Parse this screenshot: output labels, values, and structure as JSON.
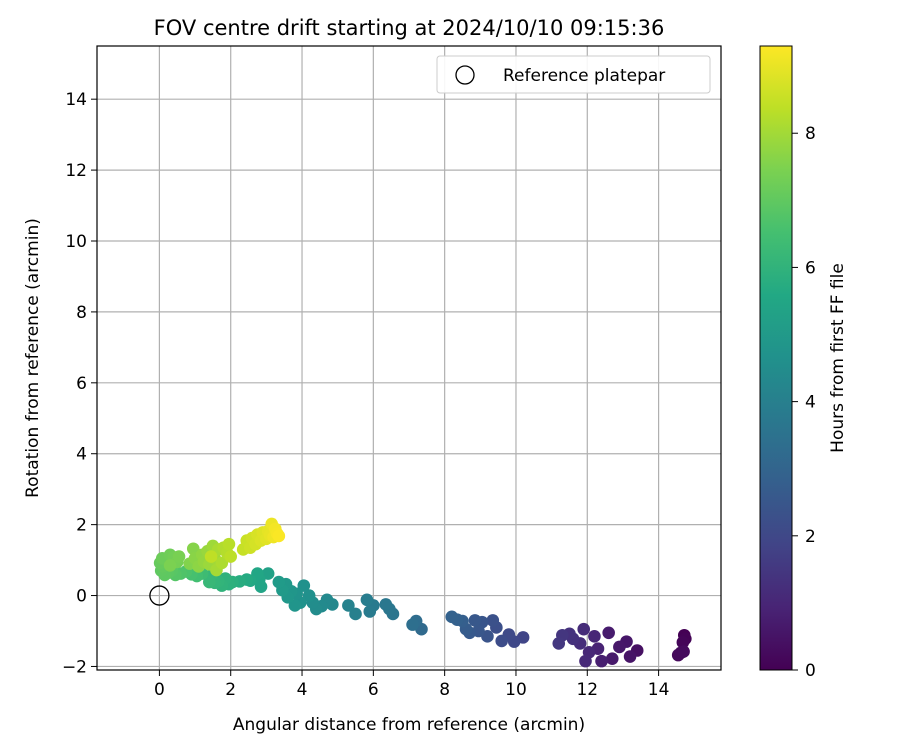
{
  "chart_data": {
    "type": "scatter",
    "title": "FOV centre drift starting at 2024/10/10 09:15:36",
    "xlabel": "Angular distance from reference (arcmin)",
    "ylabel": "Rotation from reference (arcmin)",
    "xlim": [
      -1.75,
      15.75
    ],
    "ylim": [
      -2.1,
      15.5
    ],
    "xticks": [
      0,
      2,
      4,
      6,
      8,
      10,
      12,
      14
    ],
    "yticks": [
      -2,
      0,
      2,
      4,
      6,
      8,
      10,
      12,
      14
    ],
    "grid": true,
    "legend": {
      "placement": "upper-right",
      "entries": [
        "Reference platepar"
      ]
    },
    "reference_point": {
      "x": 0,
      "y": 0,
      "label": "Reference platepar"
    },
    "colorbar": {
      "label": "Hours from first FF file",
      "colormap": "viridis",
      "range": [
        0,
        9.3
      ],
      "ticks": [
        0,
        2,
        4,
        6,
        8
      ]
    },
    "series": [
      {
        "points": [
          {
            "x": 14.72,
            "y": -1.12,
            "t": 0.0
          },
          {
            "x": 14.75,
            "y": -1.22,
            "t": 0.05
          },
          {
            "x": 14.68,
            "y": -1.32,
            "t": 0.1
          },
          {
            "x": 14.62,
            "y": -1.62,
            "t": 0.15
          },
          {
            "x": 14.55,
            "y": -1.68,
            "t": 0.2
          },
          {
            "x": 14.7,
            "y": -1.58,
            "t": 0.25
          },
          {
            "x": 13.4,
            "y": -1.55,
            "t": 0.4
          },
          {
            "x": 13.2,
            "y": -1.72,
            "t": 0.5
          },
          {
            "x": 13.1,
            "y": -1.3,
            "t": 0.55
          },
          {
            "x": 12.9,
            "y": -1.45,
            "t": 0.6
          },
          {
            "x": 12.7,
            "y": -1.78,
            "t": 0.65
          },
          {
            "x": 12.6,
            "y": -1.05,
            "t": 0.7
          },
          {
            "x": 12.4,
            "y": -1.85,
            "t": 0.8
          },
          {
            "x": 12.3,
            "y": -1.5,
            "t": 0.9
          },
          {
            "x": 12.2,
            "y": -1.15,
            "t": 1.0
          },
          {
            "x": 12.05,
            "y": -1.6,
            "t": 1.05
          },
          {
            "x": 11.95,
            "y": -1.85,
            "t": 1.1
          },
          {
            "x": 11.9,
            "y": -0.95,
            "t": 1.15
          },
          {
            "x": 11.8,
            "y": -1.35,
            "t": 1.2
          },
          {
            "x": 11.6,
            "y": -1.22,
            "t": 1.3
          },
          {
            "x": 11.5,
            "y": -1.08,
            "t": 1.35
          },
          {
            "x": 11.3,
            "y": -1.12,
            "t": 1.45
          },
          {
            "x": 11.2,
            "y": -1.35,
            "t": 1.5
          },
          {
            "x": 10.2,
            "y": -1.18,
            "t": 1.9
          },
          {
            "x": 9.95,
            "y": -1.3,
            "t": 2.0
          },
          {
            "x": 9.8,
            "y": -1.1,
            "t": 2.05
          },
          {
            "x": 9.6,
            "y": -1.28,
            "t": 2.15
          },
          {
            "x": 9.45,
            "y": -0.9,
            "t": 2.25
          },
          {
            "x": 9.35,
            "y": -0.7,
            "t": 2.3
          },
          {
            "x": 9.2,
            "y": -1.15,
            "t": 2.4
          },
          {
            "x": 9.05,
            "y": -0.75,
            "t": 2.45
          },
          {
            "x": 8.95,
            "y": -1.0,
            "t": 2.5
          },
          {
            "x": 8.85,
            "y": -0.7,
            "t": 2.55
          },
          {
            "x": 8.7,
            "y": -1.05,
            "t": 2.6
          },
          {
            "x": 8.6,
            "y": -0.95,
            "t": 2.7
          },
          {
            "x": 8.5,
            "y": -0.72,
            "t": 2.8
          },
          {
            "x": 8.35,
            "y": -0.68,
            "t": 2.85
          },
          {
            "x": 8.2,
            "y": -0.6,
            "t": 2.9
          },
          {
            "x": 7.35,
            "y": -0.95,
            "t": 3.2
          },
          {
            "x": 7.2,
            "y": -0.72,
            "t": 3.3
          },
          {
            "x": 7.1,
            "y": -0.82,
            "t": 3.4
          },
          {
            "x": 6.55,
            "y": -0.52,
            "t": 3.6
          },
          {
            "x": 6.45,
            "y": -0.38,
            "t": 3.65
          },
          {
            "x": 6.35,
            "y": -0.25,
            "t": 3.7
          },
          {
            "x": 6.0,
            "y": -0.28,
            "t": 3.8
          },
          {
            "x": 5.9,
            "y": -0.45,
            "t": 3.85
          },
          {
            "x": 5.82,
            "y": -0.12,
            "t": 3.9
          },
          {
            "x": 5.5,
            "y": -0.52,
            "t": 4.0
          },
          {
            "x": 5.3,
            "y": -0.28,
            "t": 4.1
          },
          {
            "x": 4.85,
            "y": -0.25,
            "t": 4.3
          },
          {
            "x": 4.7,
            "y": -0.12,
            "t": 4.35
          },
          {
            "x": 4.55,
            "y": -0.3,
            "t": 4.4
          },
          {
            "x": 4.4,
            "y": -0.38,
            "t": 4.45
          },
          {
            "x": 4.3,
            "y": -0.2,
            "t": 4.5
          },
          {
            "x": 4.2,
            "y": 0.0,
            "t": 4.6
          },
          {
            "x": 4.05,
            "y": 0.28,
            "t": 4.65
          },
          {
            "x": 3.95,
            "y": -0.2,
            "t": 4.7
          },
          {
            "x": 3.85,
            "y": 0.05,
            "t": 4.75
          },
          {
            "x": 3.8,
            "y": -0.28,
            "t": 4.8
          },
          {
            "x": 3.7,
            "y": 0.12,
            "t": 4.85
          },
          {
            "x": 3.6,
            "y": -0.05,
            "t": 4.9
          },
          {
            "x": 3.55,
            "y": 0.32,
            "t": 4.95
          },
          {
            "x": 3.45,
            "y": 0.15,
            "t": 5.0
          },
          {
            "x": 3.35,
            "y": 0.38,
            "t": 5.05
          },
          {
            "x": 3.05,
            "y": 0.62,
            "t": 5.3
          },
          {
            "x": 2.85,
            "y": 0.25,
            "t": 5.4
          },
          {
            "x": 2.8,
            "y": 0.45,
            "t": 5.45
          },
          {
            "x": 2.75,
            "y": 0.62,
            "t": 5.5
          },
          {
            "x": 2.55,
            "y": 0.42,
            "t": 5.6
          },
          {
            "x": 2.45,
            "y": 0.45,
            "t": 5.65
          },
          {
            "x": 2.25,
            "y": 0.4,
            "t": 5.75
          },
          {
            "x": 2.05,
            "y": 0.38,
            "t": 5.85
          },
          {
            "x": 1.95,
            "y": 0.32,
            "t": 5.9
          },
          {
            "x": 1.85,
            "y": 0.48,
            "t": 5.95
          },
          {
            "x": 1.75,
            "y": 0.28,
            "t": 6.0
          },
          {
            "x": 1.65,
            "y": 0.4,
            "t": 6.05
          },
          {
            "x": 1.55,
            "y": 0.36,
            "t": 6.1
          },
          {
            "x": 1.45,
            "y": 0.55,
            "t": 6.15
          },
          {
            "x": 1.4,
            "y": 0.38,
            "t": 6.2
          },
          {
            "x": 1.2,
            "y": 0.62,
            "t": 6.35
          },
          {
            "x": 1.05,
            "y": 0.55,
            "t": 6.45
          },
          {
            "x": 0.9,
            "y": 0.6,
            "t": 6.55
          },
          {
            "x": 0.75,
            "y": 0.68,
            "t": 6.65
          },
          {
            "x": 0.6,
            "y": 0.62,
            "t": 6.72
          },
          {
            "x": 0.45,
            "y": 0.58,
            "t": 6.8
          },
          {
            "x": 0.35,
            "y": 0.7,
            "t": 6.85
          },
          {
            "x": 0.25,
            "y": 0.65,
            "t": 6.9
          },
          {
            "x": 0.15,
            "y": 0.58,
            "t": 6.95
          },
          {
            "x": 0.05,
            "y": 0.7,
            "t": 7.0
          },
          {
            "x": 0.1,
            "y": 0.82,
            "t": 7.05
          },
          {
            "x": 0.02,
            "y": 0.92,
            "t": 7.1
          },
          {
            "x": 0.2,
            "y": 1.0,
            "t": 7.15
          },
          {
            "x": 0.08,
            "y": 1.05,
            "t": 7.2
          },
          {
            "x": 0.3,
            "y": 1.15,
            "t": 7.25
          },
          {
            "x": 0.4,
            "y": 1.08,
            "t": 7.3
          },
          {
            "x": 0.5,
            "y": 0.95,
            "t": 7.35
          },
          {
            "x": 0.55,
            "y": 1.1,
            "t": 7.4
          },
          {
            "x": 0.3,
            "y": 0.85,
            "t": 7.45
          },
          {
            "x": 0.85,
            "y": 0.9,
            "t": 7.55
          },
          {
            "x": 0.95,
            "y": 1.32,
            "t": 7.6
          },
          {
            "x": 1.0,
            "y": 1.05,
            "t": 7.65
          },
          {
            "x": 1.1,
            "y": 0.82,
            "t": 7.7
          },
          {
            "x": 1.2,
            "y": 1.15,
            "t": 7.75
          },
          {
            "x": 1.25,
            "y": 0.95,
            "t": 7.8
          },
          {
            "x": 1.35,
            "y": 1.25,
            "t": 7.85
          },
          {
            "x": 1.4,
            "y": 0.88,
            "t": 7.9
          },
          {
            "x": 1.5,
            "y": 1.4,
            "t": 7.95
          },
          {
            "x": 1.55,
            "y": 1.05,
            "t": 8.0
          },
          {
            "x": 1.6,
            "y": 0.72,
            "t": 8.05
          },
          {
            "x": 1.65,
            "y": 1.3,
            "t": 8.1
          },
          {
            "x": 1.75,
            "y": 0.92,
            "t": 8.15
          },
          {
            "x": 1.8,
            "y": 1.35,
            "t": 8.2
          },
          {
            "x": 1.9,
            "y": 1.2,
            "t": 8.25
          },
          {
            "x": 1.95,
            "y": 1.45,
            "t": 8.3
          },
          {
            "x": 2.0,
            "y": 1.1,
            "t": 8.35
          },
          {
            "x": 1.45,
            "y": 1.1,
            "t": 8.4
          },
          {
            "x": 2.35,
            "y": 1.3,
            "t": 8.5
          },
          {
            "x": 2.45,
            "y": 1.55,
            "t": 8.55
          },
          {
            "x": 2.55,
            "y": 1.35,
            "t": 8.6
          },
          {
            "x": 2.6,
            "y": 1.62,
            "t": 8.65
          },
          {
            "x": 2.7,
            "y": 1.45,
            "t": 8.7
          },
          {
            "x": 2.75,
            "y": 1.72,
            "t": 8.75
          },
          {
            "x": 2.85,
            "y": 1.55,
            "t": 8.8
          },
          {
            "x": 2.9,
            "y": 1.78,
            "t": 8.85
          },
          {
            "x": 3.0,
            "y": 1.6,
            "t": 8.9
          },
          {
            "x": 3.05,
            "y": 1.82,
            "t": 8.95
          },
          {
            "x": 3.1,
            "y": 1.7,
            "t": 9.0
          },
          {
            "x": 3.15,
            "y": 2.02,
            "t": 9.05
          },
          {
            "x": 3.2,
            "y": 1.65,
            "t": 9.1
          },
          {
            "x": 3.25,
            "y": 1.88,
            "t": 9.15
          },
          {
            "x": 3.3,
            "y": 1.75,
            "t": 9.2
          },
          {
            "x": 3.35,
            "y": 1.68,
            "t": 9.25
          }
        ]
      }
    ]
  }
}
